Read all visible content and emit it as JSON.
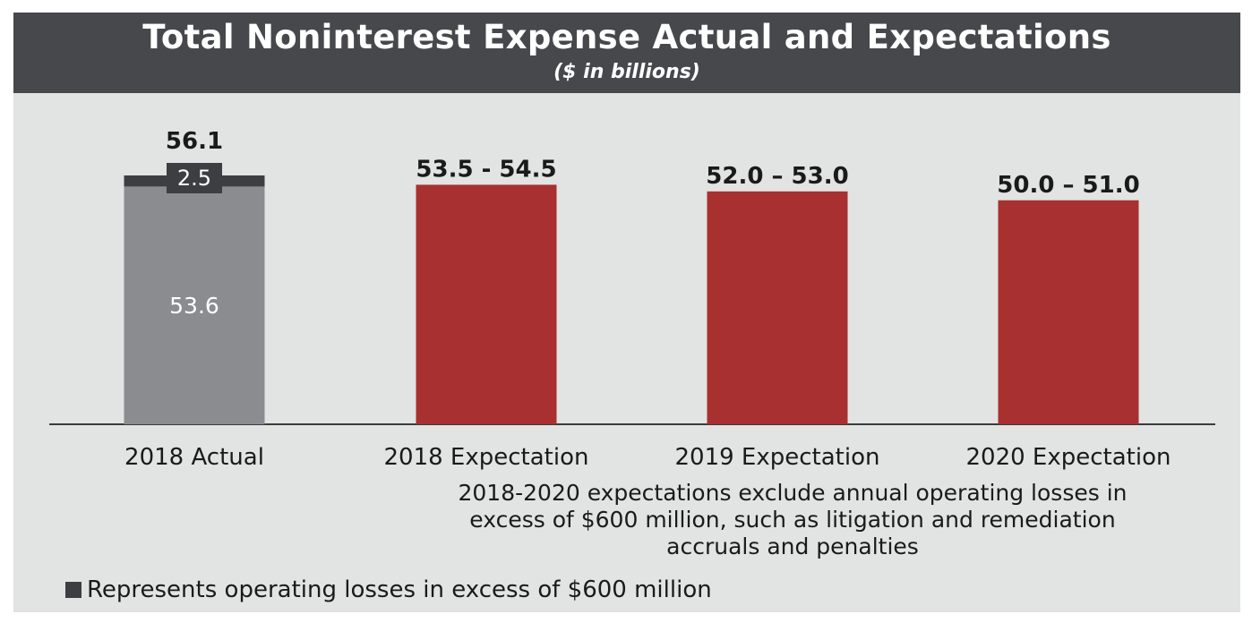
{
  "title": "Total Noninterest Expense Actual and Expectations",
  "subtitle": "($ in billions)",
  "chart_data": {
    "type": "bar",
    "title": "Total Noninterest Expense Actual and Expectations",
    "subtitle": "($ in billions)",
    "xlabel": "",
    "ylabel": "",
    "ylim": [
      0,
      56.1
    ],
    "grid": false,
    "categories": [
      "2018 Actual",
      "2018 Expectation",
      "2019 Expectation",
      "2020 Expectation"
    ],
    "actual": {
      "category": "2018 Actual",
      "base_value": 53.6,
      "base_label": "53.6",
      "losses_value": 2.5,
      "losses_label": "2.5",
      "total_value": 56.1,
      "total_label": "56.1"
    },
    "expectations": [
      {
        "category": "2018 Expectation",
        "low": 53.5,
        "high": 54.5,
        "label": "53.5 - 54.5"
      },
      {
        "category": "2019 Expectation",
        "low": 52.0,
        "high": 53.0,
        "label": "52.0 – 53.0"
      },
      {
        "category": "2020 Expectation",
        "low": 50.0,
        "high": 51.0,
        "label": "50.0 – 51.0"
      }
    ],
    "colors": {
      "actual_base": "#8b8c90",
      "operating_losses": "#3d3e42",
      "expectation": "#a83030"
    },
    "note": "2018-2020 expectations exclude annual operating losses in excess of $600 million, such as litigation and remediation accruals and penalties",
    "legend": [
      {
        "label": "Represents operating losses in excess of $600 million",
        "color": "#3d3e42",
        "position": "bottom-left"
      }
    ]
  },
  "note_lines": [
    "2018-2020 expectations exclude annual operating losses in",
    "excess of $600 million, such as litigation and remediation",
    "accruals and penalties"
  ],
  "legend_label": "Represents operating losses in excess of $600 million"
}
